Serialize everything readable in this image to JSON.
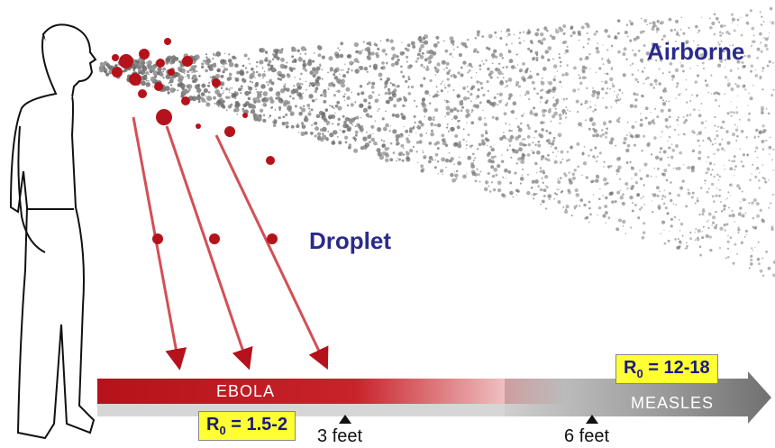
{
  "labels": {
    "airborne": "Airborne",
    "droplet": "Droplet"
  },
  "band": {
    "ebola": "EBOLA",
    "measles": "MEASLES"
  },
  "r0": {
    "ebola": {
      "prefix": "R",
      "subscript": "0",
      "suffix": " = 1.5-2"
    },
    "measles": {
      "prefix": "R",
      "subscript": "0",
      "suffix": " = 12-18"
    }
  },
  "distance": {
    "near": "3 feet",
    "far": "6 feet"
  }
}
